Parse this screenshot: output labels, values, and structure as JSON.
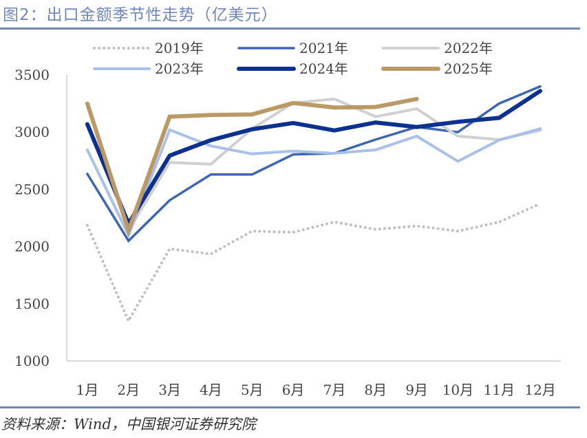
{
  "header": {
    "title": "图2：出口金额季节性走势（亿美元）"
  },
  "footer": {
    "source": "资料来源：Wind，中国银河证券研究院"
  },
  "chart_data": {
    "type": "line",
    "title": "图2：出口金额季节性走势（亿美元）",
    "xlabel": "",
    "ylabel": "",
    "categories": [
      "1月",
      "2月",
      "3月",
      "4月",
      "5月",
      "6月",
      "7月",
      "8月",
      "9月",
      "10月",
      "11月",
      "12月"
    ],
    "yticks": [
      "1000",
      "1500",
      "2000",
      "2500",
      "3000",
      "3500"
    ],
    "ylim": [
      1000,
      3500
    ],
    "grid": false,
    "legend_position": "top",
    "series": [
      {
        "name": "2019年",
        "color": "#c0c0c0",
        "style": "dotted",
        "values": [
          2185,
          1350,
          1980,
          1935,
          2135,
          2125,
          2215,
          2150,
          2180,
          2135,
          2215,
          2375
        ]
      },
      {
        "name": "2021年",
        "color": "#3e66b0",
        "style": "solid",
        "values": [
          2635,
          2050,
          2405,
          2630,
          2630,
          2805,
          2815,
          2935,
          3045,
          3000,
          3250,
          3400
        ]
      },
      {
        "name": "2022年",
        "color": "#d0d0d0",
        "style": "solid",
        "values": [
          null,
          2140,
          2735,
          2720,
          3030,
          3255,
          3290,
          3135,
          3205,
          2965,
          2935,
          3015
        ]
      },
      {
        "name": "2023年",
        "color": "#a9c0e8",
        "style": "solid",
        "values": [
          2845,
          2100,
          3020,
          2880,
          2810,
          2835,
          2815,
          2845,
          2965,
          2745,
          2930,
          3030
        ]
      },
      {
        "name": "2024年",
        "color": "#0c318e",
        "style": "solid",
        "values": [
          3070,
          2200,
          2795,
          2930,
          3025,
          3080,
          3015,
          3085,
          3045,
          3090,
          3125,
          3360
        ]
      },
      {
        "name": "2025年",
        "color": "#bb9967",
        "style": "solid",
        "values": [
          3250,
          2140,
          3135,
          3150,
          3155,
          3255,
          3215,
          3220,
          3290,
          null,
          null,
          null
        ]
      }
    ]
  }
}
